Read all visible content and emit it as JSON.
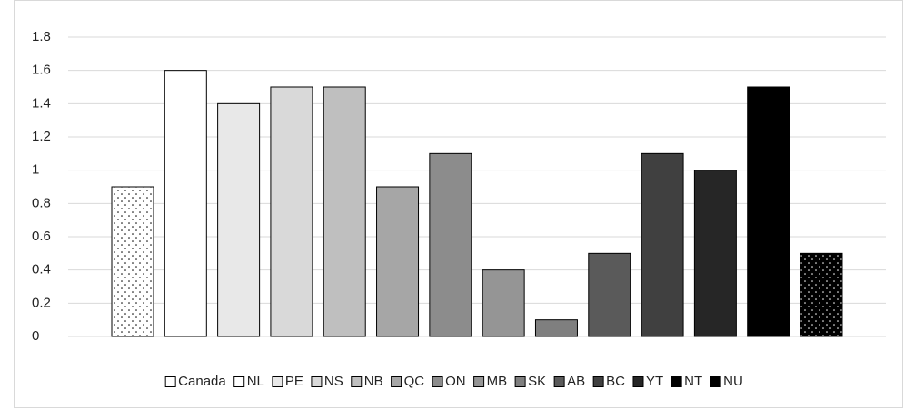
{
  "chart_data": {
    "type": "bar",
    "categories": [
      null
    ],
    "series": [
      {
        "name": "Canada",
        "color": "#ffffff",
        "pattern": "dots",
        "values": [
          0.9
        ]
      },
      {
        "name": "NL",
        "color": "#ffffff",
        "values": [
          1.6
        ]
      },
      {
        "name": "PE",
        "color": "#e8e8e8",
        "values": [
          1.4
        ]
      },
      {
        "name": "NS",
        "color": "#d9d9d9",
        "values": [
          1.5
        ]
      },
      {
        "name": "NB",
        "color": "#bfbfbf",
        "values": [
          1.5
        ]
      },
      {
        "name": "QC",
        "color": "#a6a6a6",
        "values": [
          0.9
        ]
      },
      {
        "name": "ON",
        "color": "#8c8c8c",
        "values": [
          1.1
        ]
      },
      {
        "name": "MB",
        "color": "#959595",
        "values": [
          0.4
        ]
      },
      {
        "name": "SK",
        "color": "#7f7f7f",
        "values": [
          0.1
        ]
      },
      {
        "name": "AB",
        "color": "#5a5a5a",
        "values": [
          0.5
        ]
      },
      {
        "name": "BC",
        "color": "#404040",
        "values": [
          1.1
        ]
      },
      {
        "name": "YT",
        "color": "#262626",
        "values": [
          1.0
        ]
      },
      {
        "name": "NT",
        "color": "#000000",
        "values": [
          1.5
        ]
      },
      {
        "name": "NU",
        "color": "#000000",
        "pattern": "dots",
        "values": [
          0.5
        ]
      }
    ],
    "ylim": [
      0,
      1.8
    ],
    "yticks": [
      0,
      0.2,
      0.4,
      0.6,
      0.8,
      1,
      1.2,
      1.4,
      1.6,
      1.8
    ],
    "grid": true,
    "legend": "bottom"
  }
}
